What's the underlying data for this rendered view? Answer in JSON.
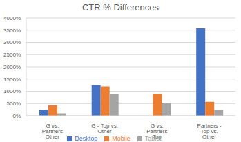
{
  "chart_data": {
    "type": "bar",
    "title": "CTR % Differences",
    "categories": [
      "G vs. Partners Other",
      "G - Top vs. Other",
      "G vs. Partners Top",
      "Partners - Top vs. Other"
    ],
    "series": [
      {
        "name": "Desktop",
        "color": "#4472c4",
        "values": [
          230,
          1250,
          0,
          3580
        ]
      },
      {
        "name": "Mobile",
        "color": "#ed7d31",
        "values": [
          430,
          1200,
          900,
          570
        ]
      },
      {
        "name": "Tablet",
        "color": "#a5a5a5",
        "values": [
          100,
          900,
          530,
          230
        ]
      }
    ],
    "ylim": [
      0,
      4000
    ],
    "yticks": [
      {
        "value": 0,
        "label": "0%"
      },
      {
        "value": 500,
        "label": "500%"
      },
      {
        "value": 1000,
        "label": "1000%"
      },
      {
        "value": 1500,
        "label": "1500%"
      },
      {
        "value": 2000,
        "label": "2000%"
      },
      {
        "value": 2500,
        "label": "2500%"
      },
      {
        "value": 3000,
        "label": "3000%"
      },
      {
        "value": 3500,
        "label": "3500%"
      },
      {
        "value": 4000,
        "label": "4000%"
      }
    ],
    "grid": true,
    "legend": "bottom"
  }
}
